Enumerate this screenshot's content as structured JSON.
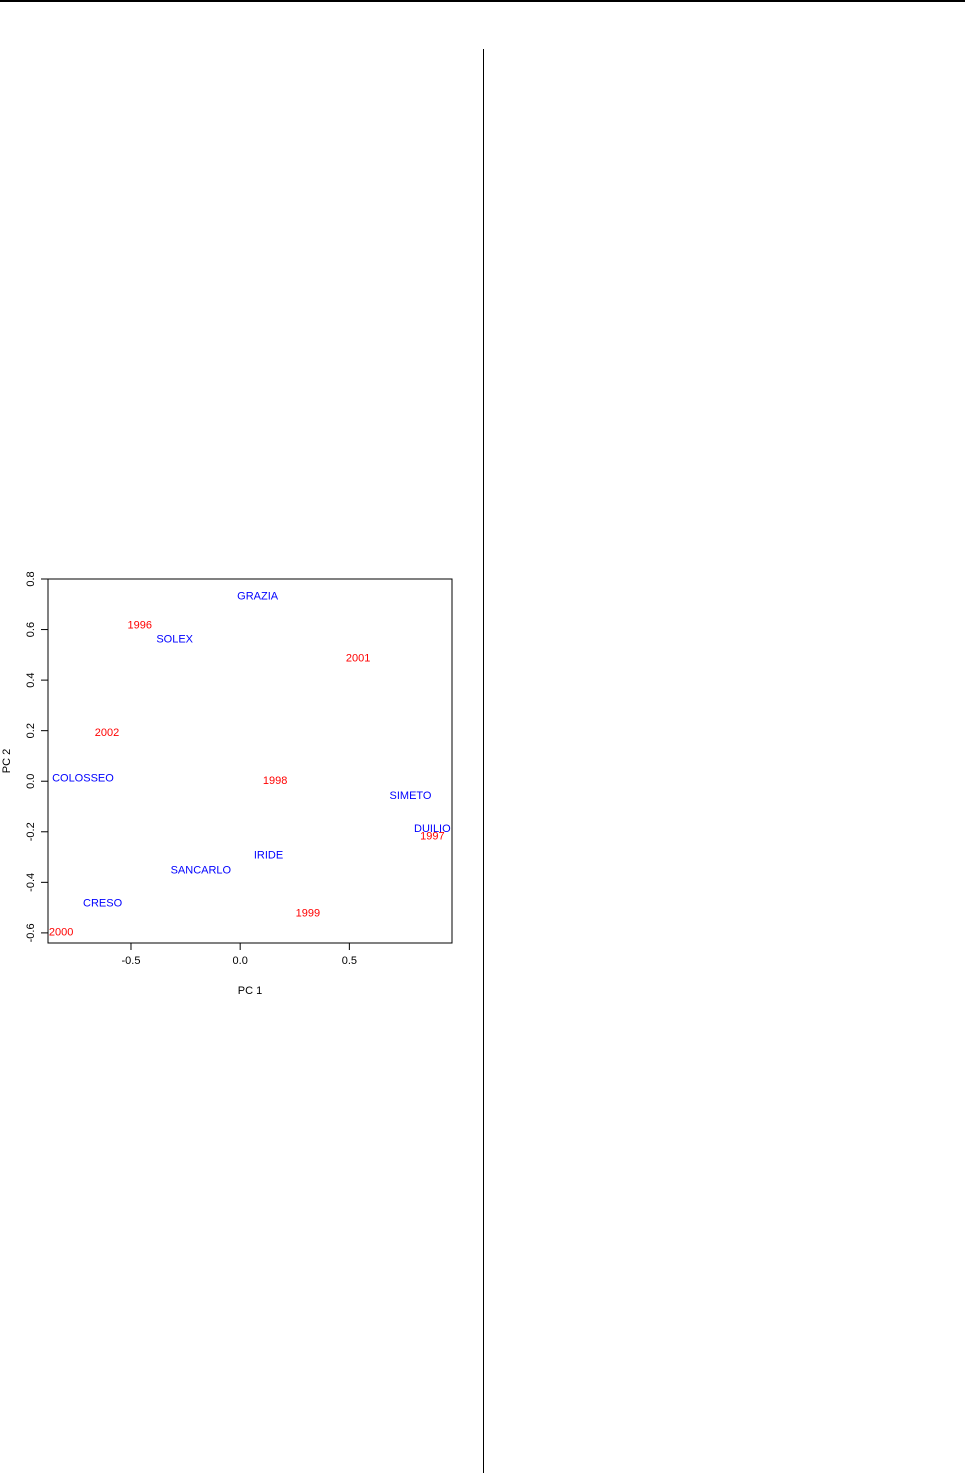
{
  "chart_data": {
    "type": "scatter",
    "xlabel": "PC 1",
    "ylabel": "PC 2",
    "xlim": [
      -0.88,
      0.97
    ],
    "ylim": [
      -0.64,
      0.8
    ],
    "x_ticks": [
      "-0.5",
      "0.0",
      "0.5"
    ],
    "y_ticks": [
      "-0.6",
      "-0.4",
      "-0.2",
      "0.0",
      "0.2",
      "0.4",
      "0.6",
      "0.8"
    ],
    "grid": false,
    "series": [
      {
        "name": "",
        "color": "#0000ff",
        "points": [
          {
            "label": "GRAZIA",
            "x": 0.08,
            "y": 0.735
          },
          {
            "label": "SOLEX",
            "x": -0.3,
            "y": 0.565
          },
          {
            "label": "COLOSSEO",
            "x": -0.72,
            "y": 0.015
          },
          {
            "label": "SIMETO",
            "x": 0.78,
            "y": -0.055
          },
          {
            "label": "DUILIO",
            "x": 0.88,
            "y": -0.185
          },
          {
            "label": "IRIDE",
            "x": 0.13,
            "y": -0.29
          },
          {
            "label": "SANCARLO",
            "x": -0.18,
            "y": -0.35
          },
          {
            "label": "CRESO",
            "x": -0.63,
            "y": -0.48
          }
        ]
      },
      {
        "name": "",
        "color": "#ff0000",
        "points": [
          {
            "label": "1996",
            "x": -0.46,
            "y": 0.62
          },
          {
            "label": "2001",
            "x": 0.54,
            "y": 0.49
          },
          {
            "label": "2002",
            "x": -0.61,
            "y": 0.195
          },
          {
            "label": "1998",
            "x": 0.16,
            "y": 0.005
          },
          {
            "label": "1997",
            "x": 0.88,
            "y": -0.215
          },
          {
            "label": "1999",
            "x": 0.31,
            "y": -0.52
          },
          {
            "label": "2000",
            "x": -0.82,
            "y": -0.595
          }
        ]
      }
    ]
  }
}
